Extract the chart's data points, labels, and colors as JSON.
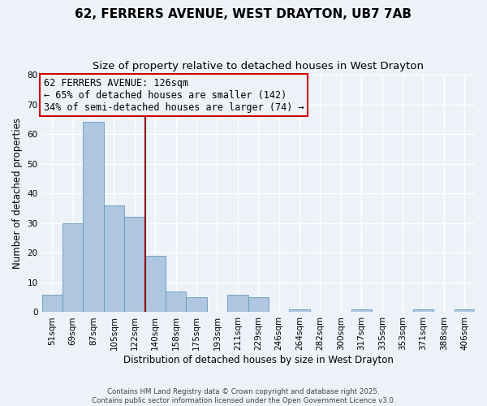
{
  "title": "62, FERRERS AVENUE, WEST DRAYTON, UB7 7AB",
  "subtitle": "Size of property relative to detached houses in West Drayton",
  "xlabel": "Distribution of detached houses by size in West Drayton",
  "ylabel": "Number of detached properties",
  "footer_lines": [
    "Contains HM Land Registry data © Crown copyright and database right 2025.",
    "Contains public sector information licensed under the Open Government Licence v3.0."
  ],
  "bin_labels": [
    "51sqm",
    "69sqm",
    "87sqm",
    "105sqm",
    "122sqm",
    "140sqm",
    "158sqm",
    "175sqm",
    "193sqm",
    "211sqm",
    "229sqm",
    "246sqm",
    "264sqm",
    "282sqm",
    "300sqm",
    "317sqm",
    "335sqm",
    "353sqm",
    "371sqm",
    "388sqm",
    "406sqm"
  ],
  "bar_values": [
    6,
    30,
    64,
    36,
    32,
    19,
    7,
    5,
    0,
    6,
    5,
    0,
    1,
    0,
    0,
    1,
    0,
    0,
    1,
    0,
    1
  ],
  "bar_color": "#aec6e0",
  "bar_edgecolor": "#6699bb",
  "vline_x_bar": 4,
  "vline_color": "#8b0000",
  "annotation_text": "62 FERRERS AVENUE: 126sqm\n← 65% of detached houses are smaller (142)\n34% of semi-detached houses are larger (74) →",
  "annotation_box_edgecolor": "#cc0000",
  "annotation_fontsize": 8.5,
  "ylim": [
    0,
    80
  ],
  "yticks": [
    0,
    10,
    20,
    30,
    40,
    50,
    60,
    70,
    80
  ],
  "background_color": "#edf2f9",
  "grid_color": "#ffffff",
  "title_fontsize": 11,
  "subtitle_fontsize": 9.5,
  "xlabel_fontsize": 8.5,
  "ylabel_fontsize": 8.5,
  "tick_fontsize": 7.5
}
